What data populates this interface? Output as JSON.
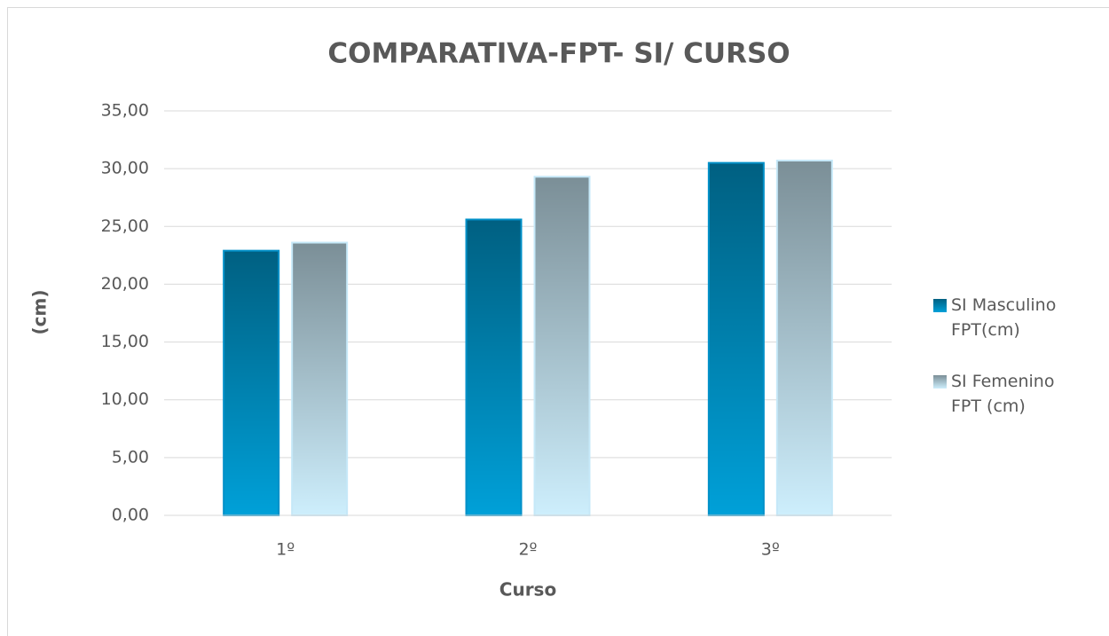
{
  "chart_data": {
    "type": "bar",
    "title": "COMPARATIVA-FPT-  SI/ CURSO",
    "y_label": "(cm)",
    "x_label": "Curso",
    "categories": [
      "1º",
      "2º",
      "3º"
    ],
    "series": [
      {
        "name": "SI Masculino FPT(cm)",
        "color": "#00a0d8",
        "values": [
          22.9,
          25.6,
          30.5
        ]
      },
      {
        "name": "SI Femenino FPT (cm)",
        "color": "#cdeefc",
        "values": [
          23.6,
          29.3,
          30.7
        ]
      }
    ],
    "ylim": [
      0,
      35
    ],
    "yticks": [
      {
        "value": 0,
        "label": "0,00"
      },
      {
        "value": 5,
        "label": "5,00"
      },
      {
        "value": 10,
        "label": "10,00"
      },
      {
        "value": 15,
        "label": "15,00"
      },
      {
        "value": 20,
        "label": "20,00"
      },
      {
        "value": 25,
        "label": "25,00"
      },
      {
        "value": 30,
        "label": "30,00"
      },
      {
        "value": 35,
        "label": "35,00"
      }
    ],
    "grid": true,
    "legend": "right"
  }
}
